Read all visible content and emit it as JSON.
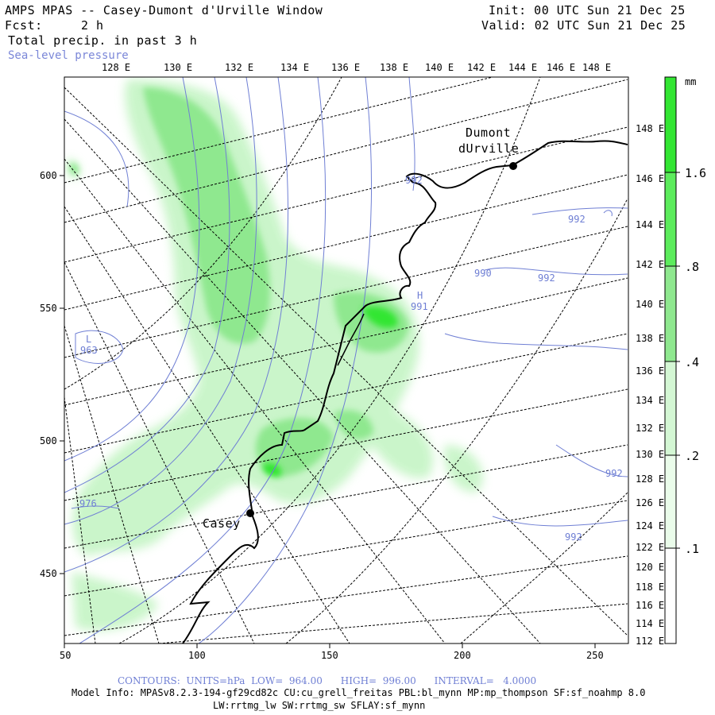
{
  "header": {
    "title": "AMPS MPAS -- Casey-Dumont d'Urville Window",
    "forecast_label": "Fcst:",
    "forecast_value": "2 h",
    "init": "Init: 00 UTC Sun 21 Dec 25",
    "valid": "Valid: 02 UTC Sun 21 Dec 25",
    "field": "Total precip. in past 3 h",
    "overlay": "Sea-level pressure"
  },
  "colors": {
    "contour": "#6f7fd4",
    "precip_light": "#c8f5c8",
    "precip_mid": "#8fe88f",
    "precip_heavy": "#33e633",
    "coast": "#000000"
  },
  "top_longitudes": [
    "128 E",
    "130 E",
    "132 E",
    "134 E",
    "136 E",
    "138 E",
    "140 E",
    "142 E",
    "144 E",
    "146 E",
    "148 E"
  ],
  "right_longitudes": [
    "148 E",
    "146 E",
    "144 E",
    "142 E",
    "140 E",
    "138 E",
    "136 E",
    "134 E",
    "132 E",
    "130 E",
    "128 E",
    "126 E",
    "124 E",
    "122 E",
    "120 E",
    "118 E",
    "116 E",
    "114 E",
    "112 E"
  ],
  "y_axis": [
    "600",
    "550",
    "500",
    "450"
  ],
  "x_axis": [
    "50",
    "100",
    "150",
    "200",
    "250"
  ],
  "colorbar": {
    "unit": "mm",
    "labels": [
      "1.6",
      ".8",
      ".4",
      ".2",
      ".1"
    ]
  },
  "stations": [
    {
      "name_line1": "Dumont",
      "name_line2": "dUrville"
    },
    {
      "name_line1": "Casey"
    }
  ],
  "pressure_labels": [
    "992",
    "992",
    "990",
    "992",
    "991",
    "963",
    "976",
    "992",
    "992"
  ],
  "highs_lows": {
    "high": "H",
    "low": "L"
  },
  "footer": {
    "contours": "CONTOURS:  UNITS=hPa  LOW=  964.00      HIGH=  996.00      INTERVAL=   4.0000",
    "model_info": "Model Info: MPASv8.2.3-194-gf29cd82c CU:cu_grell_freitas PBL:bl_mynn MP:mp_thompson SF:sf_noahmp 8.0",
    "model_info2": "LW:rrtmg_lw SW:rrtmg_sw SFLAY:sf_mynn"
  }
}
